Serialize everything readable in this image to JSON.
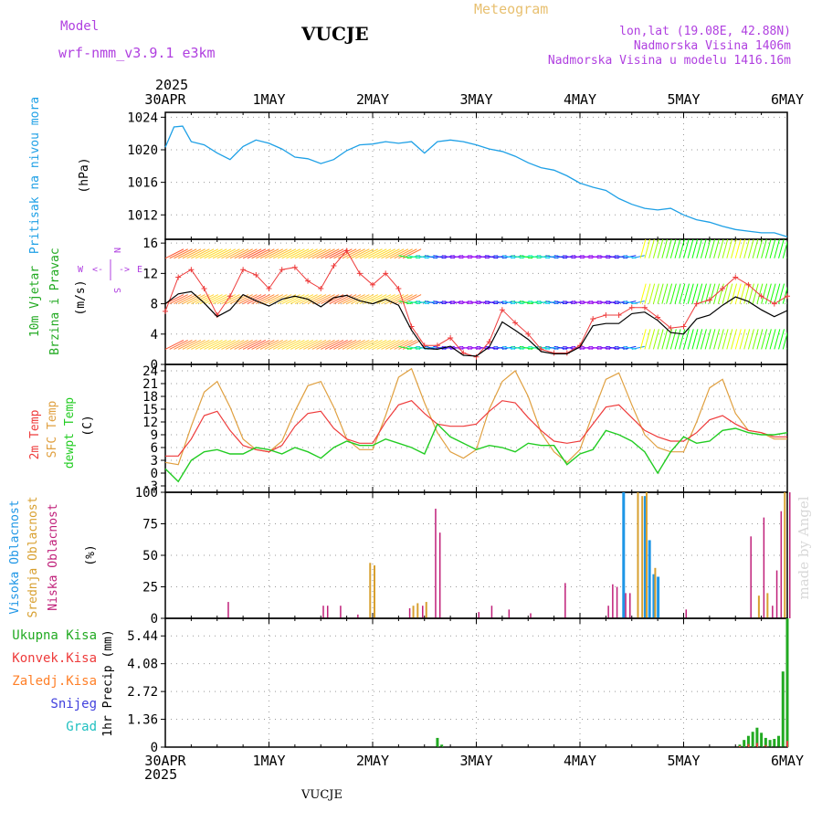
{
  "header": {
    "model_label": "Model",
    "model_name": "wrf-nmm_v3.9.1  e3km",
    "station": "VUCJE",
    "meteogram": "Meteogram",
    "lonlat": "lon,lat (19.08E, 42.88N)",
    "elevation": "Nadmorska Visina 1406m",
    "model_elevation": "Nadmorska Visina u modelu 1416.16m"
  },
  "footer": {
    "station": "VUCJE"
  },
  "watermark": "made by Angel",
  "colors": {
    "pressure": "#1ea0e6",
    "temp2m": "#ee3b3b",
    "sfc": "#e0a040",
    "dewpt": "#22cc22",
    "wind_speed": "#000000",
    "gust": "#ee3b3b",
    "high_cloud": "#1e96e6",
    "mid_cloud": "#d8a030",
    "low_cloud": "#c0207a",
    "precip": "#22aa22",
    "conv": "#ee3b3b",
    "frozen": "#ff7f27",
    "snow": "#4040dd",
    "grad": "#20c0c0",
    "panel_left_label": "#22aa22",
    "compass": "#b040e0",
    "header_purple": "#b040e0",
    "header_orange": "#e8c070"
  },
  "chart_data": {
    "type": "meteogram",
    "time_axis": {
      "year": "2025",
      "labels": [
        "30APR",
        "1MAY",
        "2MAY",
        "3MAY",
        "4MAY",
        "5MAY",
        "6MAY"
      ],
      "hours_total": 144
    },
    "panels": [
      {
        "id": "pressure",
        "ylabel": "Pritisak na nivou mora",
        "unit": "(hPa)",
        "ylim": [
          1009,
          1024.6
        ],
        "yticks": [
          "1012",
          "1016",
          "1020",
          "1024"
        ],
        "series": [
          {
            "name": "MSLP",
            "hours": [
              0,
              2,
              4,
              6,
              9,
              12,
              15,
              18,
              21,
              24,
              27,
              30,
              33,
              36,
              39,
              42,
              45,
              48,
              51,
              54,
              57,
              60,
              63,
              66,
              69,
              72,
              75,
              78,
              81,
              84,
              87,
              90,
              93,
              96,
              99,
              102,
              105,
              108,
              111,
              114,
              117,
              120,
              123,
              126,
              129,
              132,
              135,
              138,
              141,
              144
            ],
            "values": [
              1020.3,
              1022.8,
              1022.9,
              1021.0,
              1020.6,
              1019.6,
              1018.8,
              1020.4,
              1021.2,
              1020.8,
              1020.1,
              1019.1,
              1018.9,
              1018.3,
              1018.8,
              1019.9,
              1020.6,
              1020.7,
              1021.0,
              1020.8,
              1021.0,
              1019.6,
              1021.0,
              1021.2,
              1021.0,
              1020.6,
              1020.1,
              1019.8,
              1019.2,
              1018.4,
              1017.8,
              1017.5,
              1016.8,
              1015.9,
              1015.4,
              1015.0,
              1014.0,
              1013.3,
              1012.8,
              1012.6,
              1012.8,
              1012.0,
              1011.4,
              1011.1,
              1010.6,
              1010.2,
              1010.0,
              1009.8,
              1009.8,
              1009.3
            ]
          }
        ]
      },
      {
        "id": "wind",
        "ylabel_1": "10m Vjetar",
        "ylabel_2": "Brzina i Pravac",
        "unit": "(m/s)",
        "ylim": [
          0,
          16.5
        ],
        "yticks": [
          "0",
          "4",
          "8",
          "12",
          "16"
        ],
        "compass": {
          "n": "N",
          "s": "S",
          "w": "W",
          "e": "E",
          "left": "<-",
          "right": "->"
        },
        "series": [
          {
            "name": "Brzina",
            "hours": [
              0,
              3,
              6,
              9,
              12,
              15,
              18,
              21,
              24,
              27,
              30,
              33,
              36,
              39,
              42,
              45,
              48,
              51,
              54,
              57,
              60,
              63,
              66,
              69,
              72,
              75,
              78,
              81,
              84,
              87,
              90,
              93,
              96,
              99,
              102,
              105,
              108,
              111,
              114,
              117,
              120,
              123,
              126,
              129,
              132,
              135,
              138,
              141,
              144
            ],
            "values": [
              8.0,
              9.3,
              9.6,
              8.1,
              6.3,
              7.2,
              9.2,
              8.4,
              7.7,
              8.6,
              9.0,
              8.6,
              7.6,
              8.8,
              9.1,
              8.4,
              8.0,
              8.6,
              7.8,
              4.5,
              2.1,
              2.0,
              2.4,
              1.2,
              1.1,
              2.3,
              5.6,
              4.5,
              3.3,
              1.7,
              1.4,
              1.4,
              2.3,
              5.1,
              5.4,
              5.4,
              6.7,
              6.9,
              5.8,
              4.2,
              4.0,
              6.0,
              6.5,
              7.8,
              8.9,
              8.3,
              7.2,
              6.3,
              7.1
            ]
          },
          {
            "name": "Udari",
            "hours": [
              0,
              3,
              6,
              9,
              12,
              15,
              18,
              21,
              24,
              27,
              30,
              33,
              36,
              39,
              42,
              45,
              48,
              51,
              54,
              57,
              60,
              63,
              66,
              69,
              72,
              75,
              78,
              81,
              84,
              87,
              90,
              93,
              96,
              99,
              102,
              105,
              108,
              111,
              114,
              117,
              120,
              123,
              126,
              129,
              132,
              135,
              138,
              141,
              144
            ],
            "values": [
              7.0,
              11.5,
              12.5,
              10.0,
              6.5,
              9.0,
              12.5,
              11.8,
              10.0,
              12.5,
              12.8,
              11.0,
              10.0,
              13.0,
              15.0,
              12.0,
              10.5,
              12.0,
              10.0,
              5.0,
              2.5,
              2.5,
              3.5,
              1.5,
              1.0,
              3.0,
              7.2,
              5.5,
              4.0,
              2.0,
              1.5,
              1.5,
              2.5,
              6.0,
              6.5,
              6.5,
              7.5,
              7.5,
              6.2,
              4.8,
              5.0,
              8.0,
              8.5,
              10.0,
              11.5,
              10.5,
              9.0,
              8.0,
              9.0
            ]
          }
        ],
        "barb_rows": [
          {
            "y": 14,
            "color_a": "#ff7070",
            "color_b": "#ffd040",
            "direction": "NE"
          },
          {
            "y": 8,
            "color_a": "#ff6090",
            "color_b": "#ffe060",
            "direction": "NE"
          },
          {
            "y": 2,
            "color_a": "#ff40a0",
            "color_b": "#ffff40",
            "direction": "NE"
          }
        ]
      },
      {
        "id": "temperature",
        "ylabel_1": "2m Temp",
        "ylabel_2": "SFC Temp",
        "ylabel_3": "dewpt Temp",
        "unit": "(C)",
        "ylim": [
          -4.5,
          25.5
        ],
        "yticks": [
          "-3",
          "0",
          "3",
          "6",
          "9",
          "12",
          "15",
          "18",
          "21",
          "24"
        ],
        "series": [
          {
            "name": "2m Temp",
            "hours": [
              0,
              3,
              6,
              9,
              12,
              15,
              18,
              21,
              24,
              27,
              30,
              33,
              36,
              39,
              42,
              45,
              48,
              51,
              54,
              57,
              60,
              63,
              66,
              69,
              72,
              75,
              78,
              81,
              84,
              87,
              90,
              93,
              96,
              99,
              102,
              105,
              108,
              111,
              114,
              117,
              120,
              123,
              126,
              129,
              132,
              135,
              138,
              141,
              144
            ],
            "values": [
              4.0,
              4.0,
              8.0,
              13.5,
              14.5,
              10.0,
              6.5,
              5.5,
              5.0,
              6.5,
              11.0,
              14.0,
              14.5,
              10.5,
              8.0,
              7.0,
              7.0,
              12.0,
              16.0,
              17.0,
              14.0,
              11.5,
              11.0,
              11.0,
              11.5,
              14.5,
              17.0,
              16.5,
              13.0,
              10.0,
              7.5,
              7.0,
              7.5,
              11.5,
              15.5,
              16.0,
              13.0,
              10.0,
              8.5,
              7.5,
              7.5,
              9.5,
              12.5,
              13.5,
              11.5,
              10.0,
              9.5,
              8.5,
              8.5
            ]
          },
          {
            "name": "SFC Temp",
            "hours": [
              0,
              3,
              6,
              9,
              12,
              15,
              18,
              21,
              24,
              27,
              30,
              33,
              36,
              39,
              42,
              45,
              48,
              51,
              54,
              57,
              60,
              63,
              66,
              69,
              72,
              75,
              78,
              81,
              84,
              87,
              90,
              93,
              96,
              99,
              102,
              105,
              108,
              111,
              114,
              117,
              120,
              123,
              126,
              129,
              132,
              135,
              138,
              141,
              144
            ],
            "values": [
              2.5,
              2.0,
              11.0,
              19.0,
              21.5,
              15.5,
              8.0,
              5.5,
              5.0,
              7.5,
              14.5,
              20.5,
              21.5,
              15.5,
              8.0,
              5.5,
              5.5,
              13.5,
              22.5,
              24.5,
              16.5,
              9.5,
              5.0,
              3.5,
              5.5,
              15.0,
              21.5,
              24.0,
              18.0,
              9.5,
              5.0,
              2.5,
              5.5,
              14.0,
              22.0,
              23.5,
              16.0,
              9.0,
              6.0,
              5.0,
              5.0,
              12.0,
              20.0,
              22.0,
              14.0,
              10.0,
              9.5,
              8.0,
              8.0
            ]
          },
          {
            "name": "dewpt Temp",
            "hours": [
              0,
              3,
              6,
              9,
              12,
              15,
              18,
              21,
              24,
              27,
              30,
              33,
              36,
              39,
              42,
              45,
              48,
              51,
              54,
              57,
              60,
              63,
              66,
              69,
              72,
              75,
              78,
              81,
              84,
              87,
              90,
              93,
              96,
              99,
              102,
              105,
              108,
              111,
              114,
              117,
              120,
              123,
              126,
              129,
              132,
              135,
              138,
              141,
              144
            ],
            "values": [
              1.0,
              -2.0,
              3.0,
              5.0,
              5.5,
              4.5,
              4.5,
              6.0,
              5.5,
              4.5,
              6.0,
              5.0,
              3.5,
              6.0,
              7.5,
              6.5,
              6.5,
              8.0,
              7.0,
              6.0,
              4.5,
              11.5,
              8.5,
              7.0,
              5.5,
              6.5,
              6.0,
              5.0,
              7.0,
              6.5,
              6.5,
              2.0,
              4.5,
              5.5,
              10.0,
              9.0,
              7.5,
              5.0,
              0.0,
              5.0,
              8.5,
              7.0,
              7.5,
              10.0,
              10.5,
              9.5,
              9.0,
              9.0,
              9.5
            ]
          }
        ]
      },
      {
        "id": "cloud",
        "ylabel_1": "Visoka Oblacnost",
        "ylabel_2": "Srednja Oblacnost",
        "ylabel_3": "Niska Oblacnost",
        "unit": "(%)",
        "ylim": [
          0,
          100
        ],
        "yticks": [
          "0",
          "25",
          "50",
          "75",
          "100"
        ],
        "high": [
          {
            "h": 106,
            "v": 100
          },
          {
            "h": 111,
            "v": 97
          },
          {
            "h": 112,
            "v": 62
          },
          {
            "h": 113,
            "v": 35
          },
          {
            "h": 114,
            "v": 33
          }
        ],
        "mid": [
          {
            "h": 47,
            "v": 44
          },
          {
            "h": 48,
            "v": 42
          },
          {
            "h": 57,
            "v": 10
          },
          {
            "h": 58,
            "v": 12
          },
          {
            "h": 60,
            "v": 13
          },
          {
            "h": 109,
            "v": 100
          },
          {
            "h": 110,
            "v": 97
          },
          {
            "h": 111,
            "v": 100
          },
          {
            "h": 113,
            "v": 40
          },
          {
            "h": 137,
            "v": 18
          },
          {
            "h": 139,
            "v": 20
          },
          {
            "h": 143,
            "v": 100
          }
        ],
        "low": [
          {
            "h": 14,
            "v": 13
          },
          {
            "h": 36,
            "v": 10
          },
          {
            "h": 37,
            "v": 10
          },
          {
            "h": 40,
            "v": 10
          },
          {
            "h": 44,
            "v": 3
          },
          {
            "h": 56,
            "v": 8
          },
          {
            "h": 59,
            "v": 10
          },
          {
            "h": 62,
            "v": 87
          },
          {
            "h": 63,
            "v": 68
          },
          {
            "h": 72,
            "v": 5
          },
          {
            "h": 75,
            "v": 10
          },
          {
            "h": 79,
            "v": 7
          },
          {
            "h": 84,
            "v": 4
          },
          {
            "h": 92,
            "v": 28
          },
          {
            "h": 102,
            "v": 10
          },
          {
            "h": 103,
            "v": 27
          },
          {
            "h": 104,
            "v": 25
          },
          {
            "h": 106,
            "v": 20
          },
          {
            "h": 107,
            "v": 20
          },
          {
            "h": 120,
            "v": 7
          },
          {
            "h": 135,
            "v": 65
          },
          {
            "h": 138,
            "v": 80
          },
          {
            "h": 140,
            "v": 10
          },
          {
            "h": 141,
            "v": 38
          },
          {
            "h": 142,
            "v": 85
          },
          {
            "h": 144,
            "v": 100
          }
        ]
      },
      {
        "id": "precip",
        "ylabel": "1hr Precip (mm)",
        "legend": [
          "Ukupna Kisa",
          "Konvek.Kisa",
          "Zaledj.Kisa",
          "Snijeg",
          "Grad"
        ],
        "ylim": [
          0,
          6.3
        ],
        "yticks": [
          "0",
          "1.36",
          "2.72",
          "4.08",
          "5.44"
        ],
        "total": [
          {
            "h": 63,
            "v": 0.45
          },
          {
            "h": 64,
            "v": 0.12
          },
          {
            "h": 133,
            "v": 0.12
          },
          {
            "h": 134,
            "v": 0.35
          },
          {
            "h": 135,
            "v": 0.55
          },
          {
            "h": 136,
            "v": 0.75
          },
          {
            "h": 137,
            "v": 0.95
          },
          {
            "h": 138,
            "v": 0.7
          },
          {
            "h": 139,
            "v": 0.45
          },
          {
            "h": 140,
            "v": 0.35
          },
          {
            "h": 141,
            "v": 0.4
          },
          {
            "h": 142,
            "v": 0.55
          },
          {
            "h": 143,
            "v": 3.7
          },
          {
            "h": 144,
            "v": 6.3
          }
        ],
        "convective": [
          {
            "h": 133,
            "v": 0.05
          },
          {
            "h": 135,
            "v": 0.15
          },
          {
            "h": 137,
            "v": 0.2
          },
          {
            "h": 139,
            "v": 0.1
          },
          {
            "h": 144,
            "v": 0.3
          }
        ]
      }
    ]
  }
}
